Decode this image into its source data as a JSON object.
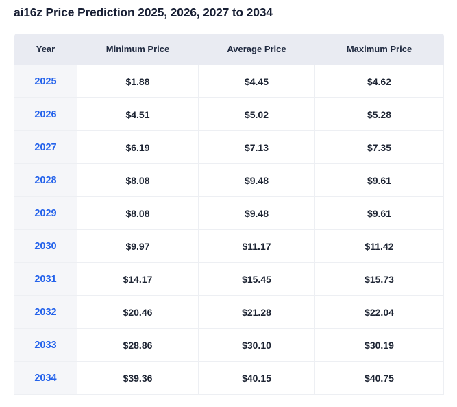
{
  "page": {
    "title": "ai16z Price Prediction 2025, 2026, 2027 to 2034"
  },
  "colors": {
    "header_bg": "#e9ebf2",
    "year_col_bg": "#f5f6f9",
    "link_blue": "#2563eb",
    "text_dark": "#1d2433",
    "border": "#edeff3"
  },
  "table": {
    "columns": [
      {
        "key": "year",
        "label": "Year"
      },
      {
        "key": "min",
        "label": "Minimum Price"
      },
      {
        "key": "avg",
        "label": "Average Price"
      },
      {
        "key": "max",
        "label": "Maximum Price"
      }
    ],
    "rows": [
      {
        "year": "2025",
        "min": "$1.88",
        "avg": "$4.45",
        "max": "$4.62"
      },
      {
        "year": "2026",
        "min": "$4.51",
        "avg": "$5.02",
        "max": "$5.28"
      },
      {
        "year": "2027",
        "min": "$6.19",
        "avg": "$7.13",
        "max": "$7.35"
      },
      {
        "year": "2028",
        "min": "$8.08",
        "avg": "$9.48",
        "max": "$9.61"
      },
      {
        "year": "2029",
        "min": "$8.08",
        "avg": "$9.48",
        "max": "$9.61"
      },
      {
        "year": "2030",
        "min": "$9.97",
        "avg": "$11.17",
        "max": "$11.42"
      },
      {
        "year": "2031",
        "min": "$14.17",
        "avg": "$15.45",
        "max": "$15.73"
      },
      {
        "year": "2032",
        "min": "$20.46",
        "avg": "$21.28",
        "max": "$22.04"
      },
      {
        "year": "2033",
        "min": "$28.86",
        "avg": "$30.10",
        "max": "$30.19"
      },
      {
        "year": "2034",
        "min": "$39.36",
        "avg": "$40.15",
        "max": "$40.75"
      }
    ]
  }
}
